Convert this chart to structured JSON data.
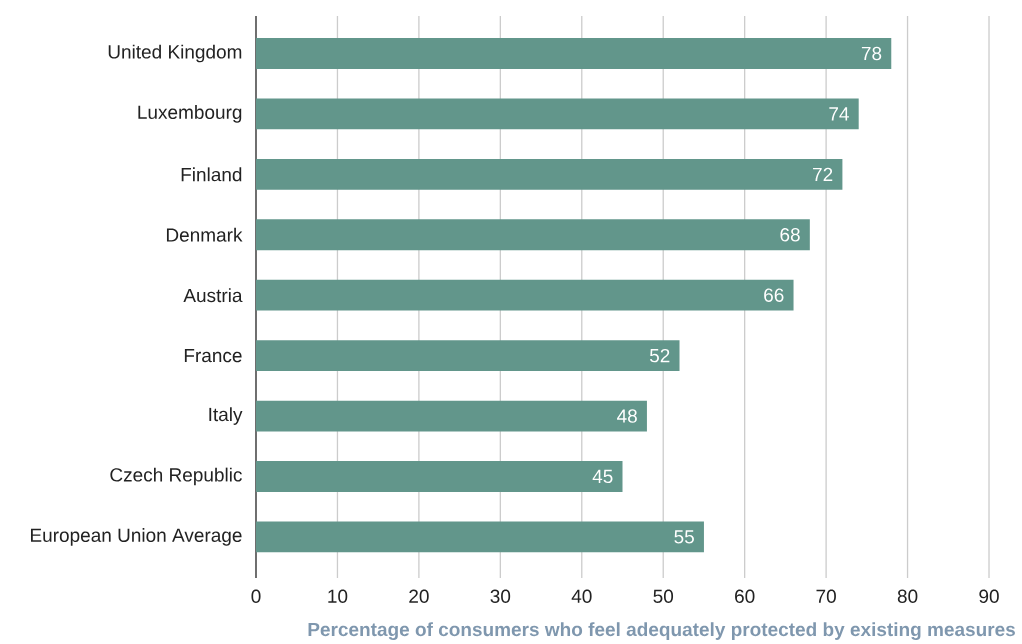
{
  "chart_data": {
    "type": "bar",
    "orientation": "horizontal",
    "categories": [
      "United Kingdom",
      "Luxembourg",
      "Finland",
      "Denmark",
      "Austria",
      "France",
      "Italy",
      "Czech Republic",
      "European Union Average"
    ],
    "values": [
      78,
      74,
      72,
      68,
      66,
      52,
      48,
      45,
      55
    ],
    "color": "#62968b",
    "xlim": [
      0,
      90
    ],
    "xticks": [
      0,
      10,
      20,
      30,
      40,
      50,
      60,
      70,
      80,
      90
    ],
    "xlabel": "Percentage of consumers who feel adequately protected by existing measures",
    "data_labels": true,
    "grid": "x"
  }
}
